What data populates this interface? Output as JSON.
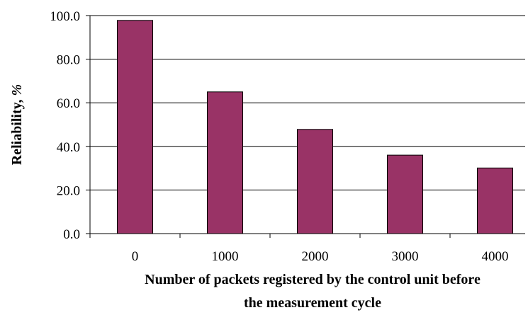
{
  "chart_data": {
    "type": "bar",
    "categories": [
      "0",
      "1000",
      "2000",
      "3000",
      "4000"
    ],
    "values": [
      97.8,
      65.0,
      47.8,
      36.0,
      30.1
    ],
    "xlabel_line1": "Number of packets registered by the control unit before",
    "xlabel_line2": "the measurement cycle",
    "ylabel_text": "Reliability, ",
    "ylabel_unit": "%",
    "ylim": [
      0,
      100
    ],
    "yticks": [
      0,
      20,
      40,
      60,
      80,
      100
    ],
    "ytick_labels": [
      "0.0",
      "20.0",
      "40.0",
      "60.0",
      "80.0",
      "100.0"
    ],
    "grid": true,
    "bar_color": "#993366"
  }
}
